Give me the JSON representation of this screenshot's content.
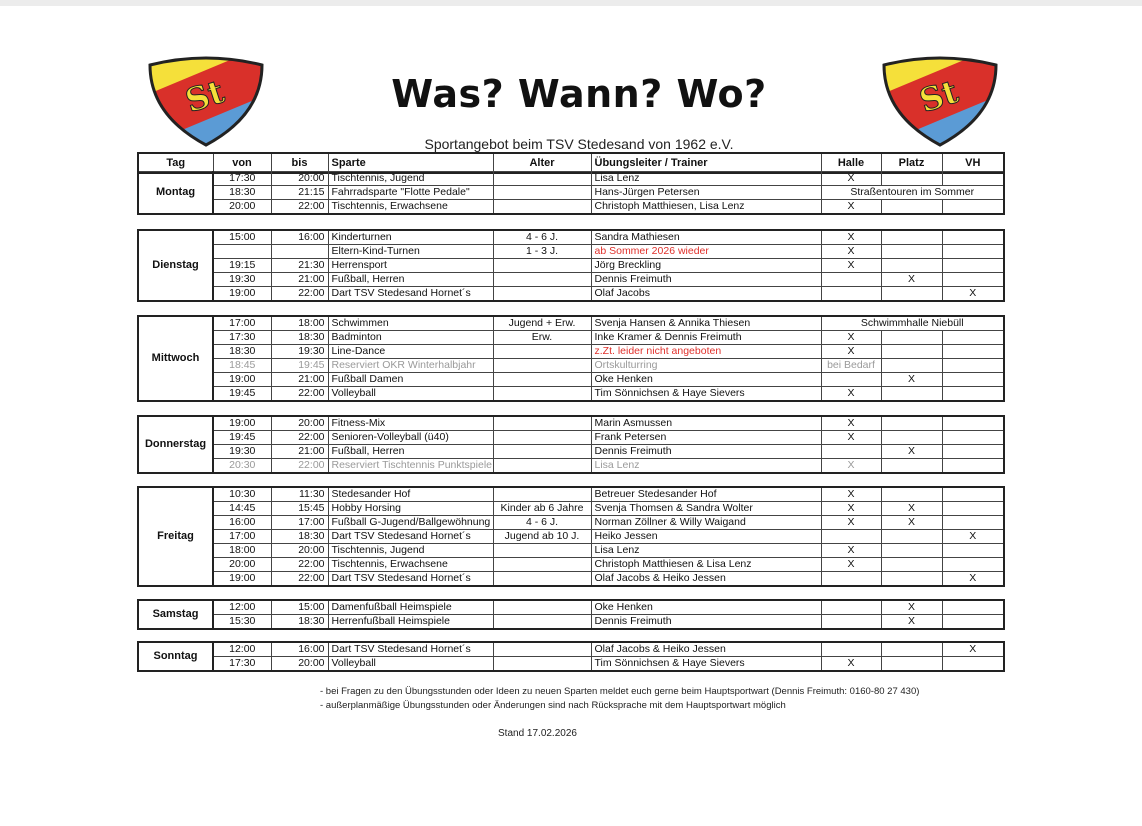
{
  "header": {
    "title": "Was? Wann? Wo?",
    "subtitle": "Sportangebot beim TSV Stedesand von 1962 e.V.",
    "logo_text": "St"
  },
  "colors": {
    "red": "#e0302b",
    "gray": "#9a9a9a",
    "logo_yellow": "#f5e03a",
    "logo_red": "#d9302a",
    "logo_blue": "#5b9bd5"
  },
  "columns": [
    "Tag",
    "von",
    "bis",
    "Sparte",
    "Alter",
    "Übungsleiter / Trainer",
    "Halle",
    "Platz",
    "VH"
  ],
  "days": [
    {
      "name": "Montag",
      "rows": [
        {
          "von": "17:30",
          "bis": "20:00",
          "sparte": "Tischtennis, Jugend",
          "alter": "",
          "trainer": "Lisa Lenz",
          "halle": "X",
          "platz": "",
          "vh": ""
        },
        {
          "von": "18:30",
          "bis": "21:15",
          "sparte": "Fahrradsparte \"Flotte Pedale\"",
          "alter": "",
          "trainer": "Hans-Jürgen Petersen",
          "ort": "Straßentouren im Sommer"
        },
        {
          "von": "20:00",
          "bis": "22:00",
          "sparte": "Tischtennis, Erwachsene",
          "alter": "",
          "trainer": "Christoph Matthiesen, Lisa Lenz",
          "halle": "X",
          "platz": "",
          "vh": ""
        }
      ]
    },
    {
      "name": "Dienstag",
      "rows": [
        {
          "von": "15:00",
          "bis": "16:00",
          "sparte": "Kinderturnen",
          "alter": "4 - 6 J.",
          "trainer": "Sandra Mathiesen",
          "halle": "X",
          "platz": "",
          "vh": ""
        },
        {
          "von": "",
          "bis": "",
          "sparte": "Eltern-Kind-Turnen",
          "alter": "1 - 3 J.",
          "trainer": "ab Sommer 2026 wieder",
          "trainer_red": true,
          "halle": "X",
          "platz": "",
          "vh": ""
        },
        {
          "von": "19:15",
          "bis": "21:30",
          "sparte": "Herrensport",
          "alter": "",
          "trainer": "Jörg Breckling",
          "halle": "X",
          "platz": "",
          "vh": ""
        },
        {
          "von": "19:30",
          "bis": "21:00",
          "sparte": "Fußball, Herren",
          "alter": "",
          "trainer": "Dennis Freimuth",
          "halle": "",
          "platz": "X",
          "vh": ""
        },
        {
          "von": "19:00",
          "bis": "22:00",
          "sparte": "Dart TSV Stedesand Hornet´s",
          "alter": "",
          "trainer": "Olaf Jacobs",
          "halle": "",
          "platz": "",
          "vh": "X"
        }
      ]
    },
    {
      "name": "Mittwoch",
      "rows": [
        {
          "von": "17:00",
          "bis": "18:00",
          "sparte": "Schwimmen",
          "alter": "Jugend + Erw.",
          "trainer": "Svenja Hansen & Annika Thiesen",
          "ort": "Schwimmhalle Niebüll"
        },
        {
          "von": "17:30",
          "bis": "18:30",
          "sparte": "Badminton",
          "alter": "Erw.",
          "trainer": "Inke Kramer & Dennis Freimuth",
          "halle": "X",
          "platz": "",
          "vh": ""
        },
        {
          "von": "18:30",
          "bis": "19:30",
          "sparte": "Line-Dance",
          "alter": "",
          "trainer": "z.Zt. leider nicht angeboten",
          "trainer_red": true,
          "halle": "X",
          "platz": "",
          "vh": ""
        },
        {
          "von": "18:45",
          "bis": "19:45",
          "sparte": "Reserviert OKR Winterhalbjahr",
          "alter": "",
          "trainer": "Ortskulturring",
          "halle": "bei Bedarf",
          "platz": "",
          "vh": "",
          "gray": true
        },
        {
          "von": "19:00",
          "bis": "21:00",
          "sparte": "Fußball Damen",
          "alter": "",
          "trainer": "Oke Henken",
          "halle": "",
          "platz": "X",
          "vh": ""
        },
        {
          "von": "19:45",
          "bis": "22:00",
          "sparte": "Volleyball",
          "alter": "",
          "trainer": "Tim Sönnichsen & Haye Sievers",
          "halle": "X",
          "platz": "",
          "vh": ""
        }
      ]
    },
    {
      "name": "Donnerstag",
      "rows": [
        {
          "von": "19:00",
          "bis": "20:00",
          "sparte": "Fitness-Mix",
          "alter": "",
          "trainer": "Marin Asmussen",
          "halle": "X",
          "platz": "",
          "vh": ""
        },
        {
          "von": "19:45",
          "bis": "22:00",
          "sparte": "Senioren-Volleyball (ü40)",
          "alter": "",
          "trainer": "Frank Petersen",
          "halle": "X",
          "platz": "",
          "vh": ""
        },
        {
          "von": "19:30",
          "bis": "21:00",
          "sparte": "Fußball, Herren",
          "alter": "",
          "trainer": "Dennis Freimuth",
          "halle": "",
          "platz": "X",
          "vh": ""
        },
        {
          "von": "20:30",
          "bis": "22:00",
          "sparte": "Reserviert Tischtennis Punktspiele",
          "alter": "",
          "trainer": "Lisa Lenz",
          "halle": "X",
          "platz": "",
          "vh": "",
          "gray": true
        }
      ]
    },
    {
      "name": "Freitag",
      "rows": [
        {
          "von": "10:30",
          "bis": "11:30",
          "sparte": "Stedesander Hof",
          "alter": "",
          "trainer": "Betreuer Stedesander Hof",
          "halle": "X",
          "platz": "",
          "vh": ""
        },
        {
          "von": "14:45",
          "bis": "15:45",
          "sparte": "Hobby Horsing",
          "alter": "Kinder ab 6 Jahre",
          "trainer": "Svenja Thomsen & Sandra Wolter",
          "halle": "X",
          "platz": "X",
          "vh": ""
        },
        {
          "von": "16:00",
          "bis": "17:00",
          "sparte": "Fußball G-Jugend/Ballgewöhnung",
          "alter": "4 - 6 J.",
          "trainer": "Norman Zöllner & Willy Waigand",
          "halle": "X",
          "platz": "X",
          "vh": ""
        },
        {
          "von": "17:00",
          "bis": "18:30",
          "sparte": "Dart TSV Stedesand Hornet´s",
          "alter": "Jugend ab 10 J.",
          "trainer": "Heiko Jessen",
          "halle": "",
          "platz": "",
          "vh": "X"
        },
        {
          "von": "18:00",
          "bis": "20:00",
          "sparte": "Tischtennis, Jugend",
          "alter": "",
          "trainer": "Lisa Lenz",
          "halle": "X",
          "platz": "",
          "vh": ""
        },
        {
          "von": "20:00",
          "bis": "22:00",
          "sparte": "Tischtennis, Erwachsene",
          "alter": "",
          "trainer": "Christoph Matthiesen & Lisa Lenz",
          "halle": "X",
          "platz": "",
          "vh": ""
        },
        {
          "von": "19:00",
          "bis": "22:00",
          "sparte": "Dart TSV Stedesand Hornet´s",
          "alter": "",
          "trainer": "Olaf Jacobs & Heiko Jessen",
          "halle": "",
          "platz": "",
          "vh": "X"
        }
      ]
    },
    {
      "name": "Samstag",
      "rows": [
        {
          "von": "12:00",
          "bis": "15:00",
          "sparte": "Damenfußball Heimspiele",
          "alter": "",
          "trainer": "Oke Henken",
          "halle": "",
          "platz": "X",
          "vh": ""
        },
        {
          "von": "15:30",
          "bis": "18:30",
          "sparte": "Herrenfußball Heimspiele",
          "alter": "",
          "trainer": "Dennis Freimuth",
          "halle": "",
          "platz": "X",
          "vh": ""
        }
      ]
    },
    {
      "name": "Sonntag",
      "rows": [
        {
          "von": "12:00",
          "bis": "16:00",
          "sparte": "Dart TSV Stedesand Hornet´s",
          "alter": "",
          "trainer": "Olaf Jacobs & Heiko Jessen",
          "halle": "",
          "platz": "",
          "vh": "X"
        },
        {
          "von": "17:30",
          "bis": "20:00",
          "sparte": "Volleyball",
          "alter": "",
          "trainer": "Tim Sönnichsen & Haye Sievers",
          "halle": "X",
          "platz": "",
          "vh": ""
        }
      ]
    }
  ],
  "notes": [
    "- bei Fragen zu den Übungsstunden oder Ideen zu neuen Sparten meldet euch gerne beim Hauptsportwart (Dennis Freimuth: 0160-80 27 430)",
    "- außerplanmäßige Übungsstunden oder Änderungen sind nach Rücksprache mit dem Hauptsportwart möglich"
  ],
  "stand": "Stand 17.02.2026"
}
